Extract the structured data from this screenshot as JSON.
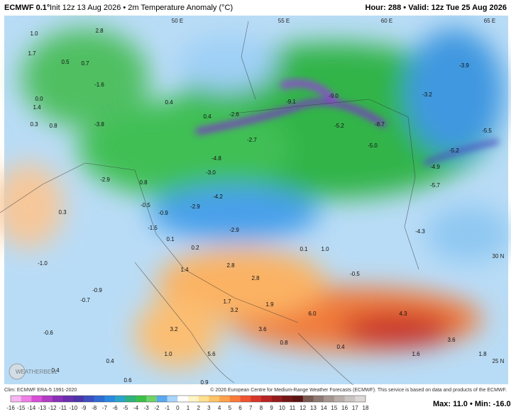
{
  "header": {
    "model": "ECMWF 0.1°",
    "init": "Init 12z 13 Aug 2026 • 2m Temperature Anomaly (°C)",
    "valid": "Hour: 288 • Valid: 12z Tue 25 Aug 2026"
  },
  "grid_labels": [
    "50 E",
    "55 E",
    "60 E",
    "65 E",
    "30 N",
    "25 N"
  ],
  "map_labels": [
    "1.0",
    "2.8",
    "1.7",
    "0.5",
    "0.7",
    "-1.6",
    "0.0",
    "1.4",
    "0.3",
    "0.8",
    "-3.8",
    "0.4",
    "0.4",
    "-2.6",
    "-9.1",
    "-9.0",
    "-5.2",
    "-8.7",
    "-5.0",
    "-3.9",
    "-3.2",
    "-5.5",
    "-5.2",
    "-4.9",
    "-5.7",
    "-4.3",
    "-2.7",
    "-4.8",
    "-3.0",
    "-4.2",
    "-2.9",
    "0.8",
    "-0.5",
    "-0.9",
    "-2.9",
    "-1.5",
    "0.1",
    "0.2",
    "-2.9",
    "0.1",
    "1.0",
    "-1.0",
    "0.3",
    "1.4",
    "2.8",
    "2.8",
    "-0.5",
    "-0.9",
    "-0.7",
    "1.7",
    "3.2",
    "1.9",
    "6.0",
    "4.3",
    "3.6",
    "-0.6",
    "3.2",
    "1.0",
    "0.4",
    "1.6",
    "1.8",
    "0.4",
    "0.4",
    "0.6",
    "0.9",
    "0.8",
    "3.6",
    "5.6"
  ],
  "watermark": "WEATHERBELL",
  "footer": {
    "clim": "Clim: ECMWF ERA-5 1991-2020",
    "copyright": "© 2026 European Centre for Medium-Range Weather Forecasts (ECMWF). This service is based on data and products of the ECMWF."
  },
  "colorbar": {
    "ticks": [
      -16,
      -15,
      -14,
      -13,
      -12,
      -11,
      -10,
      -9,
      -8,
      -7,
      -6,
      -5,
      -4,
      -3,
      -2,
      -1,
      0,
      1,
      2,
      3,
      4,
      5,
      6,
      7,
      8,
      9,
      10,
      11,
      12,
      13,
      14,
      15,
      16,
      17,
      18
    ],
    "colors": [
      "#f7b6f0",
      "#ee7fe6",
      "#d94fd6",
      "#b23cc4",
      "#8a30b8",
      "#6a2fae",
      "#4b35a8",
      "#3d4fc0",
      "#2f6cd4",
      "#2a8ae0",
      "#2aa5c8",
      "#2fb27a",
      "#3cc04a",
      "#6fd36a",
      "#5aa8f0",
      "#a9d4fa",
      "#ffffff",
      "#fff4c8",
      "#ffe090",
      "#ffc468",
      "#ffa24c",
      "#fb7a3a",
      "#ef5430",
      "#d8362a",
      "#b82424",
      "#961c1c",
      "#761616",
      "#5c1414",
      "#7a5a52",
      "#8e7a74",
      "#a49690",
      "#b8aeaa",
      "#cac4c2",
      "#dcd8d6"
    ]
  },
  "stats": "Max: 11.0 • Min: -16.0"
}
